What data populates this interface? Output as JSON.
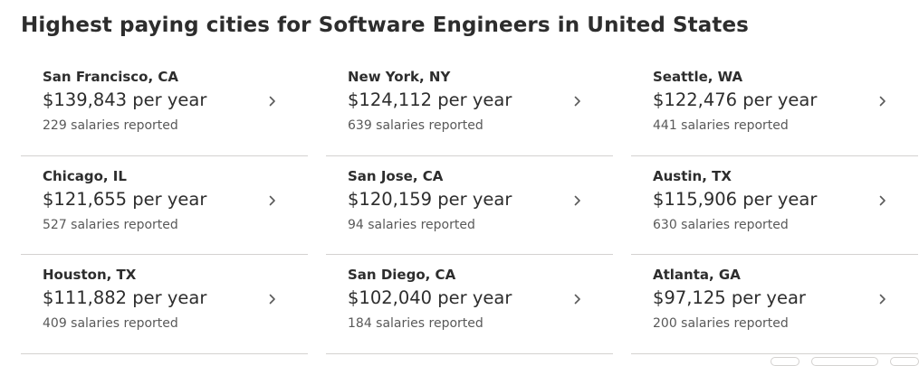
{
  "page": {
    "title": "Highest paying cities for Software Engineers in United States"
  },
  "cities": [
    {
      "city": "San Francisco, CA",
      "salary": "$139,843 per year",
      "count": "229 salaries reported"
    },
    {
      "city": "New York, NY",
      "salary": "$124,112 per year",
      "count": "639 salaries reported"
    },
    {
      "city": "Seattle, WA",
      "salary": "$122,476 per year",
      "count": "441 salaries reported"
    },
    {
      "city": "Chicago, IL",
      "salary": "$121,655 per year",
      "count": "527 salaries reported"
    },
    {
      "city": "San Jose, CA",
      "salary": "$120,159 per year",
      "count": "94 salaries reported"
    },
    {
      "city": "Austin, TX",
      "salary": "$115,906 per year",
      "count": "630 salaries reported"
    },
    {
      "city": "Houston, TX",
      "salary": "$111,882 per year",
      "count": "409 salaries reported"
    },
    {
      "city": "San Diego, CA",
      "salary": "$102,040 per year",
      "count": "184 salaries reported"
    },
    {
      "city": "Atlanta, GA",
      "salary": "$97,125 per year",
      "count": "200 salaries reported"
    }
  ],
  "colors": {
    "text": "#2d2d2d",
    "secondary_text": "#595959",
    "divider": "#d4d2d0",
    "icon": "#595959"
  },
  "icons": {
    "card_arrow": "chevron-right-icon"
  }
}
